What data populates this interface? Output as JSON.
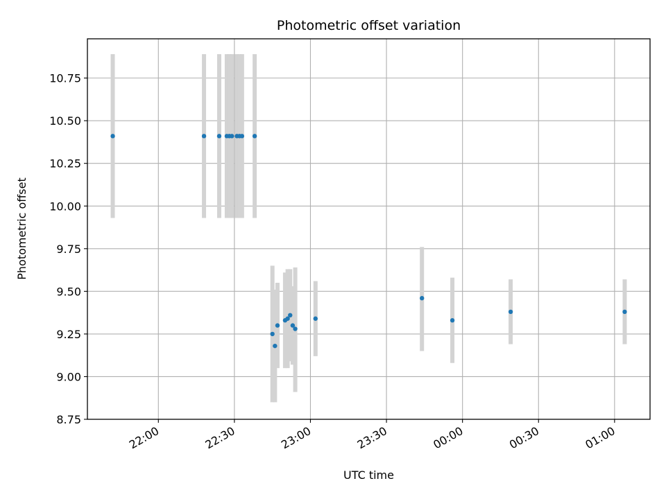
{
  "chart_data": {
    "type": "scatter",
    "title": "Photometric offset variation",
    "xlabel": "UTC time",
    "ylabel": "Photometric offset",
    "x_ticks": [
      "22:00",
      "22:30",
      "23:00",
      "23:30",
      "00:00",
      "00:30",
      "01:00"
    ],
    "y_ticks": [
      "8.75",
      "9.00",
      "9.25",
      "9.50",
      "9.75",
      "10.00",
      "10.25",
      "10.50",
      "10.75"
    ],
    "xlim": [
      "21:32",
      "01:14"
    ],
    "ylim": [
      8.75,
      10.98
    ],
    "grid": true,
    "marker_color": "#1f77b4",
    "errorbar_color": "#d3d3d3",
    "points": [
      {
        "t": "21:42",
        "y": 10.41,
        "lo": 9.93,
        "hi": 10.89
      },
      {
        "t": "22:18",
        "y": 10.41,
        "lo": 9.93,
        "hi": 10.89
      },
      {
        "t": "22:24",
        "y": 10.41,
        "lo": 9.93,
        "hi": 10.89
      },
      {
        "t": "22:27",
        "y": 10.41,
        "lo": 9.93,
        "hi": 10.89
      },
      {
        "t": "22:28",
        "y": 10.41,
        "lo": 9.93,
        "hi": 10.89
      },
      {
        "t": "22:29",
        "y": 10.41,
        "lo": 9.93,
        "hi": 10.89
      },
      {
        "t": "22:31",
        "y": 10.41,
        "lo": 9.93,
        "hi": 10.89
      },
      {
        "t": "22:32",
        "y": 10.41,
        "lo": 9.93,
        "hi": 10.89
      },
      {
        "t": "22:33",
        "y": 10.41,
        "lo": 9.93,
        "hi": 10.89
      },
      {
        "t": "22:38",
        "y": 10.41,
        "lo": 9.93,
        "hi": 10.89
      },
      {
        "t": "22:45",
        "y": 9.25,
        "lo": 8.85,
        "hi": 9.65
      },
      {
        "t": "22:46",
        "y": 9.18,
        "lo": 8.85,
        "hi": 9.51
      },
      {
        "t": "22:47",
        "y": 9.3,
        "lo": 9.05,
        "hi": 9.55
      },
      {
        "t": "22:50",
        "y": 9.33,
        "lo": 9.05,
        "hi": 9.61
      },
      {
        "t": "22:51",
        "y": 9.34,
        "lo": 9.05,
        "hi": 9.63
      },
      {
        "t": "22:52",
        "y": 9.36,
        "lo": 9.09,
        "hi": 9.63
      },
      {
        "t": "22:53",
        "y": 9.3,
        "lo": 9.07,
        "hi": 9.53
      },
      {
        "t": "22:54",
        "y": 9.28,
        "lo": 8.91,
        "hi": 9.64
      },
      {
        "t": "23:02",
        "y": 9.34,
        "lo": 9.12,
        "hi": 9.56
      },
      {
        "t": "23:44",
        "y": 9.46,
        "lo": 9.15,
        "hi": 9.76
      },
      {
        "t": "23:56",
        "y": 9.33,
        "lo": 9.08,
        "hi": 9.58
      },
      {
        "t": "00:19",
        "y": 9.38,
        "lo": 9.19,
        "hi": 9.57
      },
      {
        "t": "01:04",
        "y": 9.38,
        "lo": 9.19,
        "hi": 9.57
      }
    ]
  }
}
